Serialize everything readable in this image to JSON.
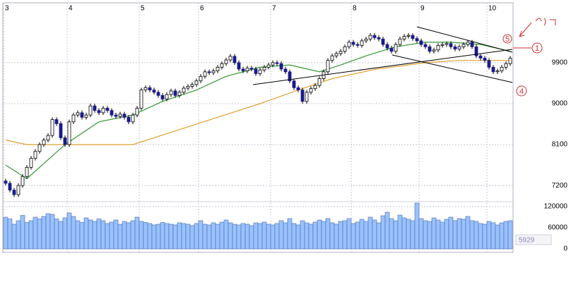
{
  "chart_data": {
    "type": "candlestick",
    "categories": [
      "3",
      null,
      null,
      null,
      null,
      null,
      null,
      null,
      null,
      null,
      null,
      null,
      null,
      null,
      null,
      "4",
      null,
      null,
      null,
      null,
      null,
      null,
      null,
      null,
      null,
      null,
      null,
      null,
      null,
      null,
      null,
      null,
      "5",
      null,
      null,
      null,
      null,
      null,
      null,
      null,
      null,
      null,
      null,
      null,
      null,
      null,
      "6",
      null,
      null,
      null,
      null,
      null,
      null,
      null,
      null,
      null,
      null,
      null,
      null,
      null,
      null,
      null,
      null,
      "7",
      null,
      null,
      null,
      null,
      null,
      null,
      null,
      null,
      null,
      null,
      null,
      null,
      null,
      null,
      null,
      null,
      null,
      null,
      "8",
      null,
      null,
      null,
      null,
      null,
      null,
      null,
      null,
      null,
      null,
      null,
      null,
      null,
      null,
      null,
      "9",
      null,
      null,
      null,
      null,
      null,
      null,
      null,
      null,
      null,
      null,
      null,
      null,
      null,
      null,
      null,
      "10",
      null,
      null,
      null,
      null,
      null
    ],
    "candles": [
      [
        7300,
        7350,
        7200,
        7250
      ],
      [
        7250,
        7300,
        7050,
        7100
      ],
      [
        7100,
        7150,
        6950,
        7000
      ],
      [
        7000,
        7250,
        6950,
        7200
      ],
      [
        7200,
        7450,
        7150,
        7400
      ],
      [
        7400,
        7650,
        7350,
        7600
      ],
      [
        7600,
        7850,
        7550,
        7800
      ],
      [
        7800,
        8000,
        7750,
        7950
      ],
      [
        7950,
        8150,
        7900,
        8100
      ],
      [
        8100,
        8250,
        8050,
        8200
      ],
      [
        8200,
        8350,
        8150,
        8300
      ],
      [
        8300,
        8700,
        8250,
        8650
      ],
      [
        8650,
        8700,
        8510,
        8560
      ],
      [
        8560,
        8610,
        8200,
        8250
      ],
      [
        8250,
        8300,
        8050,
        8100
      ],
      [
        8100,
        8650,
        8050,
        8600
      ],
      [
        8600,
        8800,
        8550,
        8750
      ],
      [
        8750,
        8850,
        8700,
        8800
      ],
      [
        8800,
        8850,
        8650,
        8700
      ],
      [
        8700,
        8800,
        8650,
        8750
      ],
      [
        8750,
        9000,
        8700,
        8950
      ],
      [
        8950,
        9000,
        8800,
        8850
      ],
      [
        8850,
        8900,
        8750,
        8800
      ],
      [
        8800,
        8950,
        8750,
        8900
      ],
      [
        8900,
        8950,
        8800,
        8850
      ],
      [
        8850,
        8900,
        8700,
        8750
      ],
      [
        8750,
        8800,
        8670,
        8720
      ],
      [
        8720,
        8820,
        8670,
        8770
      ],
      [
        8770,
        8820,
        8650,
        8700
      ],
      [
        8700,
        8750,
        8550,
        8600
      ],
      [
        8600,
        8800,
        8550,
        8750
      ],
      [
        8750,
        8950,
        8700,
        8900
      ],
      [
        8900,
        9350,
        8850,
        9300
      ],
      [
        9300,
        9400,
        9250,
        9350
      ],
      [
        9350,
        9400,
        9250,
        9300
      ],
      [
        9300,
        9350,
        9200,
        9250
      ],
      [
        9250,
        9300,
        9130,
        9180
      ],
      [
        9180,
        9230,
        9050,
        9100
      ],
      [
        9100,
        9250,
        9050,
        9200
      ],
      [
        9200,
        9330,
        9150,
        9280
      ],
      [
        9280,
        9330,
        9130,
        9180
      ],
      [
        9180,
        9300,
        9130,
        9250
      ],
      [
        9250,
        9390,
        9200,
        9340
      ],
      [
        9340,
        9430,
        9290,
        9380
      ],
      [
        9380,
        9470,
        9330,
        9420
      ],
      [
        9420,
        9550,
        9370,
        9500
      ],
      [
        9500,
        9650,
        9450,
        9600
      ],
      [
        9600,
        9750,
        9550,
        9700
      ],
      [
        9700,
        9750,
        9630,
        9680
      ],
      [
        9680,
        9770,
        9630,
        9720
      ],
      [
        9720,
        9850,
        9670,
        9800
      ],
      [
        9800,
        9930,
        9750,
        9880
      ],
      [
        9880,
        10010,
        9830,
        9960
      ],
      [
        9960,
        10090,
        9910,
        10040
      ],
      [
        10040,
        10090,
        9850,
        9900
      ],
      [
        9900,
        9950,
        9710,
        9760
      ],
      [
        9760,
        9810,
        9670,
        9720
      ],
      [
        9720,
        9830,
        9670,
        9780
      ],
      [
        9780,
        9830,
        9710,
        9760
      ],
      [
        9760,
        9810,
        9610,
        9660
      ],
      [
        9660,
        9790,
        9610,
        9740
      ],
      [
        9740,
        9850,
        9690,
        9800
      ],
      [
        9800,
        9900,
        9750,
        9850
      ],
      [
        9850,
        9950,
        9800,
        9900
      ],
      [
        9900,
        9950,
        9830,
        9880
      ],
      [
        9880,
        9930,
        9710,
        9760
      ],
      [
        9760,
        9810,
        9650,
        9700
      ],
      [
        9700,
        9750,
        9450,
        9500
      ],
      [
        9500,
        9550,
        9300,
        9350
      ],
      [
        9350,
        9400,
        9250,
        9300
      ],
      [
        9300,
        9350,
        9000,
        9050
      ],
      [
        9050,
        9300,
        9000,
        9250
      ],
      [
        9250,
        9380,
        9200,
        9330
      ],
      [
        9330,
        9450,
        9280,
        9400
      ],
      [
        9400,
        9600,
        9350,
        9550
      ],
      [
        9550,
        9750,
        9500,
        9700
      ],
      [
        9700,
        10000,
        9650,
        9950
      ],
      [
        9950,
        10100,
        9900,
        10050
      ],
      [
        10050,
        10150,
        10000,
        10100
      ],
      [
        10100,
        10200,
        10050,
        10150
      ],
      [
        10150,
        10300,
        10100,
        10250
      ],
      [
        10250,
        10400,
        10200,
        10350
      ],
      [
        10350,
        10400,
        10250,
        10300
      ],
      [
        10300,
        10350,
        10230,
        10280
      ],
      [
        10280,
        10430,
        10230,
        10380
      ],
      [
        10380,
        10470,
        10330,
        10420
      ],
      [
        10420,
        10550,
        10370,
        10500
      ],
      [
        10500,
        10550,
        10400,
        10450
      ],
      [
        10450,
        10500,
        10370,
        10420
      ],
      [
        10420,
        10470,
        10250,
        10300
      ],
      [
        10300,
        10350,
        10170,
        10220
      ],
      [
        10220,
        10270,
        10100,
        10150
      ],
      [
        10150,
        10350,
        10100,
        10300
      ],
      [
        10300,
        10470,
        10250,
        10420
      ],
      [
        10420,
        10530,
        10370,
        10480
      ],
      [
        10480,
        10550,
        10430,
        10500
      ],
      [
        10500,
        10550,
        10380,
        10430
      ],
      [
        10430,
        10480,
        10330,
        10380
      ],
      [
        10380,
        10430,
        10250,
        10300
      ],
      [
        10300,
        10350,
        10200,
        10250
      ],
      [
        10250,
        10300,
        10100,
        10150
      ],
      [
        10150,
        10230,
        10100,
        10180
      ],
      [
        10180,
        10330,
        10130,
        10280
      ],
      [
        10280,
        10350,
        10230,
        10300
      ],
      [
        10300,
        10370,
        10250,
        10320
      ],
      [
        10320,
        10370,
        10200,
        10250
      ],
      [
        10250,
        10300,
        10150,
        10200
      ],
      [
        10200,
        10300,
        10150,
        10250
      ],
      [
        10250,
        10350,
        10200,
        10300
      ],
      [
        10300,
        10400,
        10250,
        10350
      ],
      [
        10350,
        10400,
        10200,
        10250
      ],
      [
        10250,
        10300,
        10000,
        10050
      ],
      [
        10050,
        10100,
        9950,
        10000
      ],
      [
        10000,
        10050,
        9900,
        9950
      ],
      [
        9950,
        10000,
        9750,
        9800
      ],
      [
        9800,
        9850,
        9650,
        9700
      ],
      [
        9700,
        9770,
        9650,
        9720
      ],
      [
        9720,
        9850,
        9670,
        9800
      ],
      [
        9800,
        9930,
        9750,
        9880
      ],
      [
        9880,
        10050,
        9830,
        10000
      ]
    ],
    "up_color": "#ffffff",
    "down_color": "#1a1a8c",
    "ylim": [
      6800,
      11200
    ],
    "yticks": [
      7200,
      8100,
      9000,
      9900
    ],
    "grid": true,
    "moving_averages": [
      {
        "color": "#339933",
        "x": [
          0,
          5,
          14,
          22,
          30,
          37,
          45,
          52,
          60,
          67,
          74,
          79,
          85,
          92,
          99,
          105,
          112,
          119
        ],
        "values": [
          7650,
          7350,
          8100,
          8600,
          8750,
          9050,
          9300,
          9600,
          9800,
          9850,
          9700,
          9850,
          10050,
          10250,
          10350,
          10350,
          10300,
          10150
        ]
      },
      {
        "color": "#e0a030",
        "x": [
          0,
          5,
          15,
          30,
          40,
          50,
          60,
          69,
          77,
          87,
          99,
          107,
          119
        ],
        "values": [
          8200,
          8100,
          8100,
          8100,
          8400,
          8700,
          9000,
          9300,
          9550,
          9750,
          9900,
          9950,
          9950
        ]
      }
    ],
    "volume": {
      "color": "#99c2ff",
      "ylim": [
        0,
        132000
      ],
      "yticks": [
        0,
        60000,
        120000
      ],
      "values": [
        90000,
        85000,
        70000,
        80000,
        95000,
        75000,
        80000,
        90000,
        85000,
        92000,
        100000,
        98000,
        85000,
        78000,
        88000,
        102000,
        92000,
        80000,
        75000,
        88000,
        82000,
        78000,
        85000,
        80000,
        72000,
        76000,
        82000,
        70000,
        78000,
        74000,
        80000,
        90000,
        78000,
        75000,
        72000,
        68000,
        70000,
        75000,
        72000,
        70000,
        68000,
        74000,
        72000,
        70000,
        66000,
        72000,
        80000,
        70000,
        68000,
        74000,
        70000,
        76000,
        82000,
        74000,
        70000,
        68000,
        72000,
        70000,
        66000,
        74000,
        72000,
        76000,
        70000,
        68000,
        72000,
        80000,
        74000,
        86000,
        72000,
        68000,
        80000,
        74000,
        70000,
        76000,
        82000,
        78000,
        86000,
        74000,
        70000,
        78000,
        80000,
        86000,
        72000,
        76000,
        84000,
        78000,
        90000,
        82000,
        74000,
        94000,
        104000,
        86000,
        80000,
        96000,
        88000,
        84000,
        80000,
        130000,
        86000,
        80000,
        78000,
        88000,
        82000,
        76000,
        84000,
        90000,
        80000,
        86000,
        84000,
        92000,
        80000,
        78000,
        72000,
        70000,
        78000,
        74000,
        68000,
        74000,
        78000,
        80000
      ],
      "readout": "5929"
    },
    "annotations": [
      "5",
      "1",
      "4"
    ]
  }
}
